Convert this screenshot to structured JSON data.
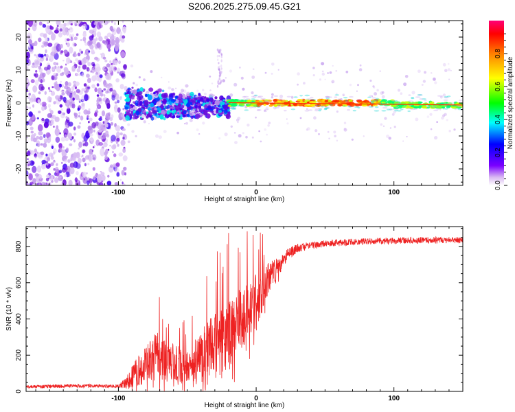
{
  "title": "S206.2025.275.09.45.G21",
  "colors": {
    "line": "#ee2222",
    "axis": "#000000",
    "background": "#ffffff"
  },
  "chart_data": [
    {
      "type": "heatmap",
      "name": "spectrogram",
      "xlabel": "Height of straight line (km)",
      "ylabel": "Frequency (Hz)",
      "xlim": [
        -167,
        150
      ],
      "ylim": [
        -25,
        25
      ],
      "xticks": [
        -100,
        0,
        100
      ],
      "xtick_labels": [
        "-100",
        "0",
        "100"
      ],
      "yticks": [
        -20,
        -10,
        0,
        10,
        20
      ],
      "ytick_labels": [
        "-20",
        "-10",
        "0",
        "10",
        "20"
      ],
      "colorbar": {
        "label": "Normalized spectral amplitude",
        "range": [
          0,
          1
        ],
        "ticks": [
          0,
          0.2,
          0.4,
          0.6,
          0.8
        ],
        "tick_labels": [
          "0.0",
          "0.2",
          "0.4",
          "0.6",
          "0.8"
        ]
      },
      "regions": [
        {
          "name": "scattered-noise",
          "x": [
            -167,
            -95
          ],
          "freq_spread": 25,
          "amplitude": 0.1
        },
        {
          "name": "spread-signal",
          "x": [
            -95,
            -20
          ],
          "freq_spread": 5,
          "amplitude": 0.3
        },
        {
          "name": "narrow-carrier",
          "x": [
            -20,
            150
          ],
          "freq_center": 0,
          "amplitude": 0.85
        }
      ]
    },
    {
      "type": "line",
      "name": "snr",
      "xlabel": "Height of straight line (km)",
      "ylabel": "SNR (10 * v/v)",
      "xlim": [
        -167,
        150
      ],
      "ylim": [
        0,
        910
      ],
      "xticks": [
        -100,
        0,
        100
      ],
      "xtick_labels": [
        "-100",
        "0",
        "100"
      ],
      "yticks": [
        0,
        200,
        400,
        600,
        800
      ],
      "ytick_labels": [
        "0",
        "200",
        "400",
        "600",
        "800"
      ],
      "series": [
        {
          "name": "SNR",
          "x": [
            -167,
            -150,
            -140,
            -130,
            -120,
            -110,
            -100,
            -95,
            -90,
            -85,
            -80,
            -75,
            -70,
            -65,
            -60,
            -55,
            -50,
            -45,
            -40,
            -35,
            -30,
            -25,
            -20,
            -15,
            -10,
            -5,
            0,
            5,
            10,
            15,
            20,
            25,
            30,
            35,
            40,
            45,
            50,
            60,
            70,
            80,
            90,
            100,
            110,
            120,
            130,
            140,
            150
          ],
          "y": [
            25,
            28,
            30,
            30,
            30,
            28,
            30,
            45,
            80,
            120,
            160,
            180,
            200,
            160,
            170,
            150,
            140,
            170,
            200,
            230,
            250,
            280,
            300,
            360,
            400,
            440,
            500,
            560,
            640,
            680,
            730,
            770,
            790,
            800,
            805,
            810,
            815,
            820,
            825,
            828,
            830,
            832,
            834,
            835,
            836,
            836,
            835
          ],
          "noise": [
            8,
            10,
            10,
            10,
            10,
            8,
            10,
            30,
            60,
            90,
            110,
            130,
            130,
            110,
            100,
            100,
            90,
            120,
            140,
            160,
            180,
            190,
            200,
            190,
            170,
            160,
            150,
            120,
            80,
            60,
            40,
            30,
            25,
            22,
            20,
            20,
            20,
            18,
            18,
            18,
            18,
            18,
            18,
            18,
            18,
            18,
            18
          ]
        }
      ]
    }
  ]
}
